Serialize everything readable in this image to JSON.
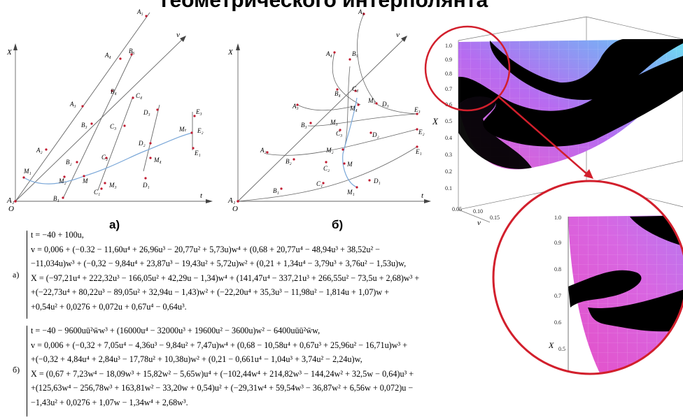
{
  "header": {
    "title": "геометрического интерполянта"
  },
  "panel_a": {
    "caption": "а)",
    "axis_x": "X",
    "axis_t": "t",
    "axis_v": "v",
    "origin": "O",
    "origin_point": "A₁",
    "points": [
      "A₂",
      "A₃",
      "A₄",
      "A₅",
      "B₁",
      "B₂",
      "B₃",
      "B₄",
      "B₅",
      "C₁",
      "C₂",
      "C₃",
      "C₄",
      "D₁",
      "D₂",
      "D₃",
      "E₁",
      "E₂",
      "E₃",
      "M",
      "M₁",
      "M₂",
      "M₃",
      "M₄",
      "Mₜ"
    ]
  },
  "panel_b": {
    "caption": "б)",
    "axis_x": "X",
    "axis_t": "t",
    "axis_v": "v",
    "origin": "O",
    "origin_point": "A₁",
    "points": [
      "A₂",
      "A₃",
      "A₄",
      "A₅",
      "B₁",
      "B₂",
      "B₃",
      "B₄",
      "B₅",
      "C₁",
      "C₂",
      "C₃",
      "C₄",
      "D₁",
      "D₂",
      "D₃",
      "E₁",
      "E₂",
      "E₃",
      "M",
      "M₁",
      "M₂",
      "M₃",
      "M₄",
      "M₅"
    ]
  },
  "surface_plot": {
    "z_axis": "X",
    "y_axis": "v",
    "z_ticks": [
      "1.0",
      "0.9",
      "0.8",
      "0.7",
      "0.6",
      "0.5",
      "0.4",
      "0.3",
      "0.2",
      "0.1"
    ],
    "v_ticks": [
      "0.05",
      "0.10",
      "0.15"
    ],
    "zoom_ticks": [
      "1.0",
      "0.9",
      "0.8",
      "0.7",
      "0.6",
      "0.5"
    ],
    "zoom_axis": "X"
  },
  "equations": {
    "a": {
      "label": "а)",
      "lines": [
        "t = −40 + 100u,",
        "v = 0,006 + (−0.32 − 11,60u⁴ + 26,96u³ − 20,77u² + 5,73u)w⁴ + (0,68 + 20,77u⁴ − 48,94u³ + 38,52u² −",
        "−11,034u)w³ + (−0,32 − 9,84u⁴ + 23,87u³ − 19,43u² + 5,72u)w² + (0,21 + 1,34u⁴ − 3,79u³ + 3,76u² − 1,53u)w,",
        "X = (−97,21u⁴ + 222,32u³ − 166,05u² + 42,29u − 1,34)w⁴ + (141,47u⁴ − 337,21u³ + 266,55u² − 73,5u + 2,68)w³ +",
        "+(−22,73u⁴ + 80,22u³ − 89,05u² + 32,94u − 1,43)w² + (−22,20u⁴ + 35,3u³ − 11,98u² − 1,814u + 1,07)w +",
        "+0,54u² + 0,0276 + 0,072u + 0,67u⁴ − 0,64u³."
      ]
    },
    "b": {
      "label": "б)",
      "lines": [
        "t = −40 − 9600uū²w̄w³ + (16000u⁴ − 32000u³ + 19600u² − 3600u)w² − 6400uūū²w̄w,",
        "v = 0,006 + (−0,32 + 7,05u⁴ − 4,36u³ − 9,84u² + 7,47u)w⁴ + (0,68 − 10,58u⁴ + 0,67u³ + 25,96u² − 16,71u)w³ +",
        "+(−0,32 + 4,84u⁴ + 2,84u³ − 17,78u² + 10,38u)w² + (0,21 − 0,661u⁴ − 1,04u³ + 3,74u² − 2,24u)w,",
        "X = (0,67 + 7,23w⁴ − 18,09w³ + 15,82w² − 5,65w)u⁴ + (−102,44w⁴ + 214,82w³ − 144,24w² + 32,5w − 0,64)u³ +",
        "+(125,63w⁴ − 256,78w³ + 163,81w² − 33,20w + 0,54)u² + (−29,31w⁴ + 59,54w³ − 36,87w² + 6,56w + 0,072)u −",
        "−1,43u² + 0,0276 + 1,07w − 1,34w⁴ + 2,68w³."
      ]
    }
  }
}
